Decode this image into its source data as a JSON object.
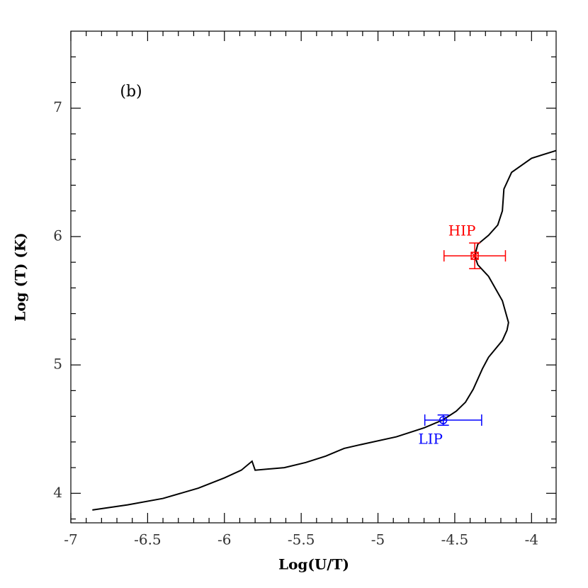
{
  "chart_data": {
    "type": "line",
    "xlabel": "Log(U/T)",
    "ylabel": "Log (T) (K)",
    "annotation": "(b)",
    "xlim": [
      -7,
      -3.84
    ],
    "ylim": [
      3.77,
      7.6
    ],
    "xticks": [
      -7,
      -6.5,
      -6,
      -5.5,
      -5,
      -4.5,
      -4
    ],
    "yticks": [
      4,
      5,
      6,
      7
    ],
    "xminorticks": [
      -6.9,
      -6.8,
      -6.7,
      -6.6,
      -6.4,
      -6.3,
      -6.2,
      -6.1,
      -5.9,
      -5.8,
      -5.7,
      -5.6,
      -5.4,
      -5.3,
      -5.2,
      -5.1,
      -4.9,
      -4.8,
      -4.7,
      -4.6,
      -4.4,
      -4.3,
      -4.2,
      -4.1,
      -3.9
    ],
    "yminorticks": [
      3.8,
      4.2,
      4.4,
      4.6,
      4.8,
      5.2,
      5.4,
      5.6,
      5.8,
      6.2,
      6.4,
      6.6,
      6.8,
      7.2,
      7.4
    ],
    "series": [
      {
        "color": "#000000",
        "x": [
          -6.86,
          -6.63,
          -6.4,
          -6.17,
          -6.0,
          -5.89,
          -5.82,
          -5.8,
          -5.61,
          -5.47,
          -5.34,
          -5.22,
          -5.11,
          -4.88,
          -4.7,
          -4.58,
          -4.49,
          -4.43,
          -4.38,
          -4.32,
          -4.28,
          -4.19,
          -4.16,
          -4.15,
          -4.19,
          -4.28,
          -4.35,
          -4.37,
          -4.35,
          -4.28,
          -4.22,
          -4.19,
          -4.18,
          -4.13,
          -4.0,
          -3.84
        ],
        "values": [
          3.87,
          3.91,
          3.96,
          4.04,
          4.12,
          4.18,
          4.25,
          4.18,
          4.2,
          4.24,
          4.29,
          4.35,
          4.38,
          4.44,
          4.51,
          4.57,
          4.64,
          4.71,
          4.81,
          4.97,
          5.06,
          5.19,
          5.27,
          5.33,
          5.5,
          5.69,
          5.78,
          5.85,
          5.94,
          6.01,
          6.09,
          6.2,
          6.37,
          6.5,
          6.61,
          6.67
        ]
      }
    ],
    "points": [
      {
        "label": "HIP",
        "color": "#ff0000",
        "marker": "square",
        "x": -4.37,
        "y": 5.85,
        "xerr": [
          0.2,
          0.2
        ],
        "yerr": [
          0.1,
          0.1
        ]
      },
      {
        "label": "LIP",
        "color": "#0000ff",
        "marker": "circle",
        "x": -4.575,
        "y": 4.57,
        "xerr": [
          0.12,
          0.25
        ],
        "yerr": [
          0.04,
          0.04
        ]
      }
    ]
  }
}
